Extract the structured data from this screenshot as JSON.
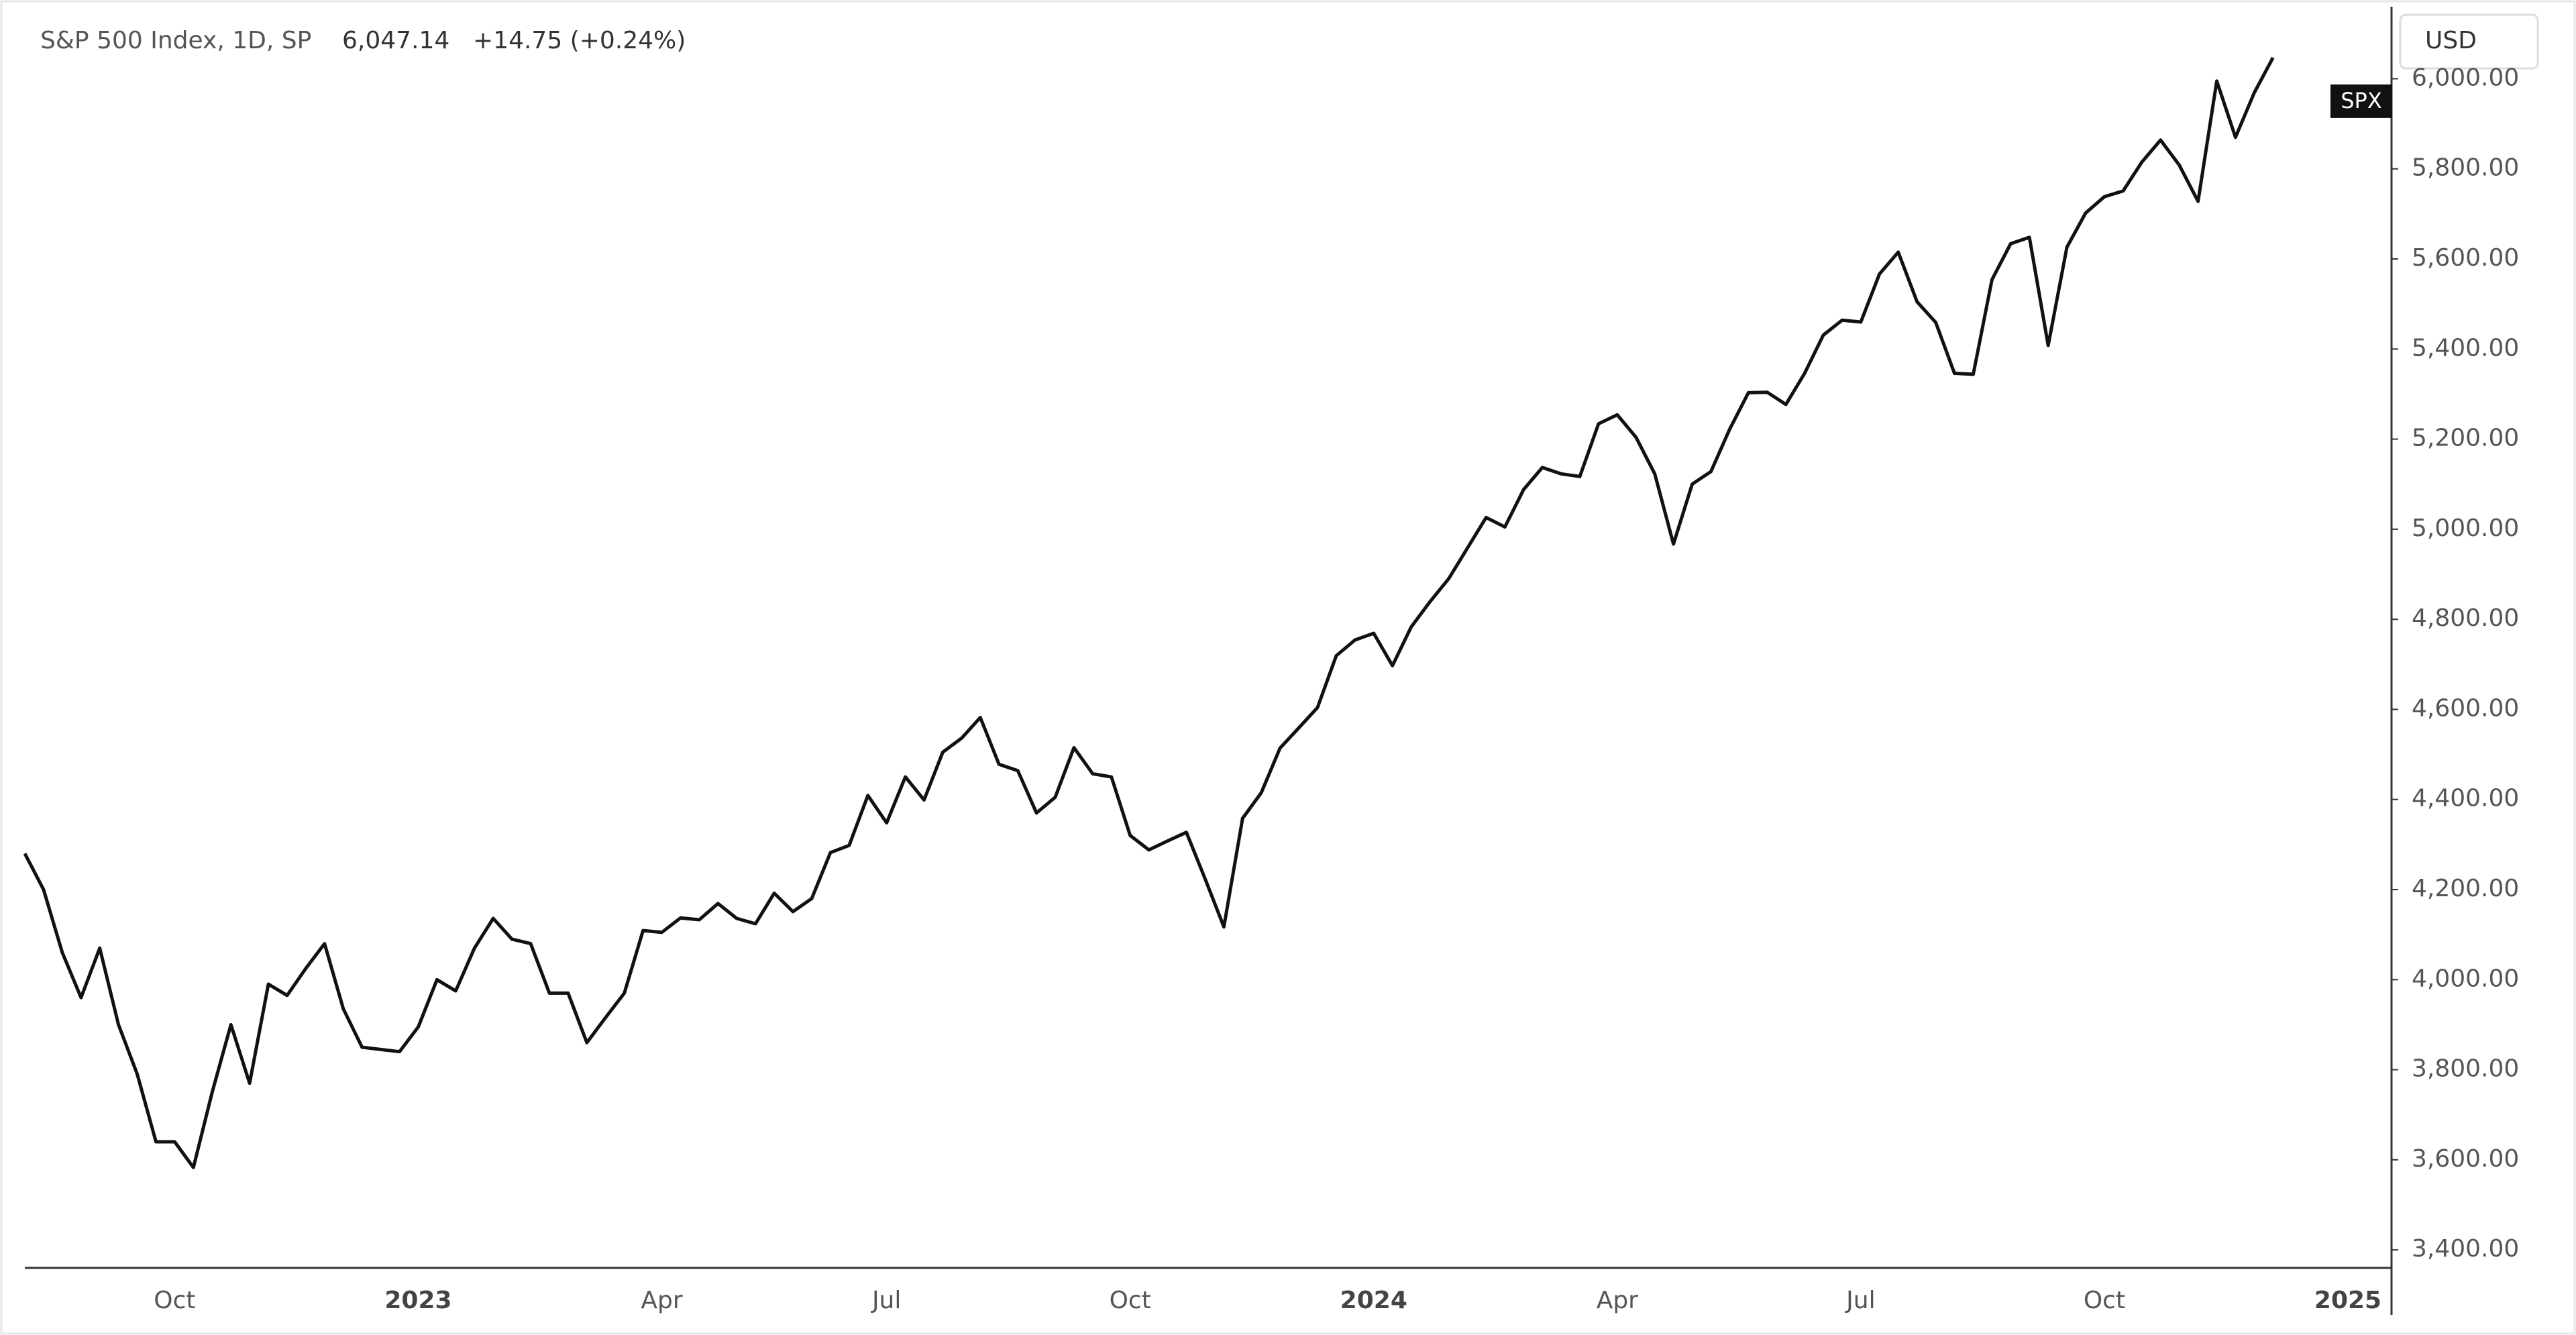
{
  "chart_data": {
    "type": "line",
    "title": "S&P 500 Index, 1D, SP",
    "last_price": "6,047.14",
    "change": "+14.75 (+0.24%)",
    "price_tag": "SPX",
    "currency": "USD",
    "categories": [
      null,
      null,
      null,
      null,
      null,
      null,
      null,
      null,
      "Oct",
      null,
      null,
      null,
      null,
      null,
      null,
      null,
      null,
      null,
      null,
      null,
      null,
      "2023",
      null,
      null,
      null,
      null,
      null,
      null,
      null,
      null,
      null,
      null,
      null,
      null,
      "Apr",
      null,
      null,
      null,
      null,
      null,
      null,
      null,
      null,
      null,
      null,
      null,
      "Jul",
      null,
      null,
      null,
      null,
      null,
      null,
      null,
      null,
      null,
      null,
      null,
      null,
      "Oct",
      null,
      null,
      null,
      null,
      null,
      null,
      null,
      null,
      null,
      null,
      null,
      null,
      "2024",
      null,
      null,
      null,
      null,
      null,
      null,
      null,
      null,
      null,
      null,
      null,
      null,
      "Apr",
      null,
      null,
      null,
      null,
      null,
      null,
      null,
      null,
      null,
      null,
      null,
      null,
      "Jul",
      null,
      null,
      null,
      null,
      null,
      null,
      null,
      null,
      null,
      null,
      null,
      null,
      "Oct",
      null,
      null,
      null,
      null,
      null,
      null,
      null,
      null,
      null,
      null,
      null,
      null,
      "2025",
      null
    ],
    "series": [
      {
        "name": "SPX",
        "color": "#111111",
        "values": [
          4280,
          4200,
          4060,
          3960,
          4070,
          3900,
          3790,
          3640,
          3640,
          3583,
          3750,
          3900,
          3770,
          3990,
          3965,
          4025,
          4080,
          3935,
          3850,
          3845,
          3840,
          3895,
          4000,
          3975,
          4070,
          4136,
          4090,
          4080,
          3970,
          3970,
          3860,
          3916,
          3970,
          4109,
          4105,
          4137,
          4133,
          4169,
          4136,
          4124,
          4192,
          4151,
          4180,
          4282,
          4298,
          4409,
          4348,
          4450,
          4399,
          4505,
          4536,
          4582,
          4478,
          4464,
          4370,
          4405,
          4515,
          4457,
          4450,
          4320,
          4288,
          4308,
          4327,
          4224,
          4117,
          4358,
          4415,
          4514,
          4559,
          4604,
          4719,
          4754,
          4769,
          4697,
          4783,
          4839,
          4890,
          4958,
          5026,
          5005,
          5088,
          5137,
          5123,
          5117,
          5234,
          5254,
          5204,
          5123,
          4967,
          5100,
          5128,
          5222,
          5303,
          5304,
          5277,
          5346,
          5431,
          5464,
          5460,
          5567,
          5615,
          5505,
          5459,
          5346,
          5344,
          5554,
          5634,
          5648,
          5408,
          5626,
          5702,
          5738,
          5751,
          5815,
          5864,
          5808,
          5728,
          5995,
          5870,
          5969,
          6047,
          null,
          null,
          null,
          null,
          null
        ]
      }
    ],
    "ylim": [
      3360,
      6160
    ],
    "yticks": [
      {
        "value": 3400,
        "label": "3,400.00"
      },
      {
        "value": 3600,
        "label": "3,600.00"
      },
      {
        "value": 3800,
        "label": "3,800.00"
      },
      {
        "value": 4000,
        "label": "4,000.00"
      },
      {
        "value": 4200,
        "label": "4,200.00"
      },
      {
        "value": 4400,
        "label": "4,400.00"
      },
      {
        "value": 4600,
        "label": "4,600.00"
      },
      {
        "value": 4800,
        "label": "4,800.00"
      },
      {
        "value": 5000,
        "label": "5,000.00"
      },
      {
        "value": 5200,
        "label": "5,200.00"
      },
      {
        "value": 5400,
        "label": "5,400.00"
      },
      {
        "value": 5600,
        "label": "5,600.00"
      },
      {
        "value": 5800,
        "label": "5,800.00"
      },
      {
        "value": 6000,
        "label": "6,000.00"
      }
    ],
    "grid": false
  }
}
